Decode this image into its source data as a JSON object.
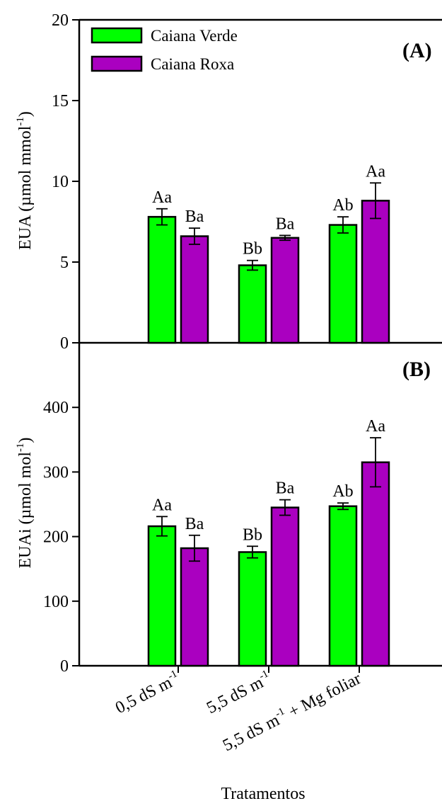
{
  "legend": [
    {
      "label": "Caiana Verde",
      "color": "#00ff00"
    },
    {
      "label": "Caiana Roxa",
      "color": "#aa00c0"
    }
  ],
  "xlabel": "Tratamentos",
  "categories": [
    {
      "base": "0,5 dS m",
      "sup": "-1",
      "tail": ""
    },
    {
      "base": "5,5 dS m",
      "sup": "-1",
      "tail": ""
    },
    {
      "base": "5,5 dS m",
      "sup": "-1",
      "tail": " + Mg foliar"
    }
  ],
  "chart_data": [
    {
      "type": "bar",
      "panel_label": "(A)",
      "ylabel_base": "EUA (µmol mmol",
      "ylabel_sup": "-1",
      "ylabel_tail": ")",
      "ylim": [
        0,
        20
      ],
      "yticks": [
        0,
        5,
        10,
        15,
        20
      ],
      "categories": [
        "0,5 dS m-1",
        "5,5 dS m-1",
        "5,5 dS m-1 + Mg foliar"
      ],
      "series": [
        {
          "name": "Caiana Verde",
          "values": [
            7.8,
            4.8,
            7.3
          ],
          "errors": [
            0.5,
            0.3,
            0.5
          ],
          "labels": [
            "Aa",
            "Bb",
            "Ab"
          ]
        },
        {
          "name": "Caiana Roxa",
          "values": [
            6.6,
            6.5,
            8.8
          ],
          "errors": [
            0.5,
            0.15,
            1.1
          ],
          "labels": [
            "Ba",
            "Ba",
            "Aa"
          ]
        }
      ]
    },
    {
      "type": "bar",
      "panel_label": "(B)",
      "ylabel_base": "EUAi (µmol mol",
      "ylabel_sup": "-1",
      "ylabel_tail": ")",
      "ylim": [
        0,
        500
      ],
      "yticks": [
        0,
        100,
        200,
        300,
        400
      ],
      "categories": [
        "0,5 dS m-1",
        "5,5 dS m-1",
        "5,5 dS m-1 + Mg foliar"
      ],
      "series": [
        {
          "name": "Caiana Verde",
          "values": [
            216,
            176,
            247
          ],
          "errors": [
            15,
            9,
            5
          ],
          "labels": [
            "Aa",
            "Bb",
            "Ab"
          ]
        },
        {
          "name": "Caiana Roxa",
          "values": [
            182,
            245,
            315
          ],
          "errors": [
            20,
            12,
            38
          ],
          "labels": [
            "Ba",
            "Ba",
            "Aa"
          ]
        }
      ]
    }
  ]
}
